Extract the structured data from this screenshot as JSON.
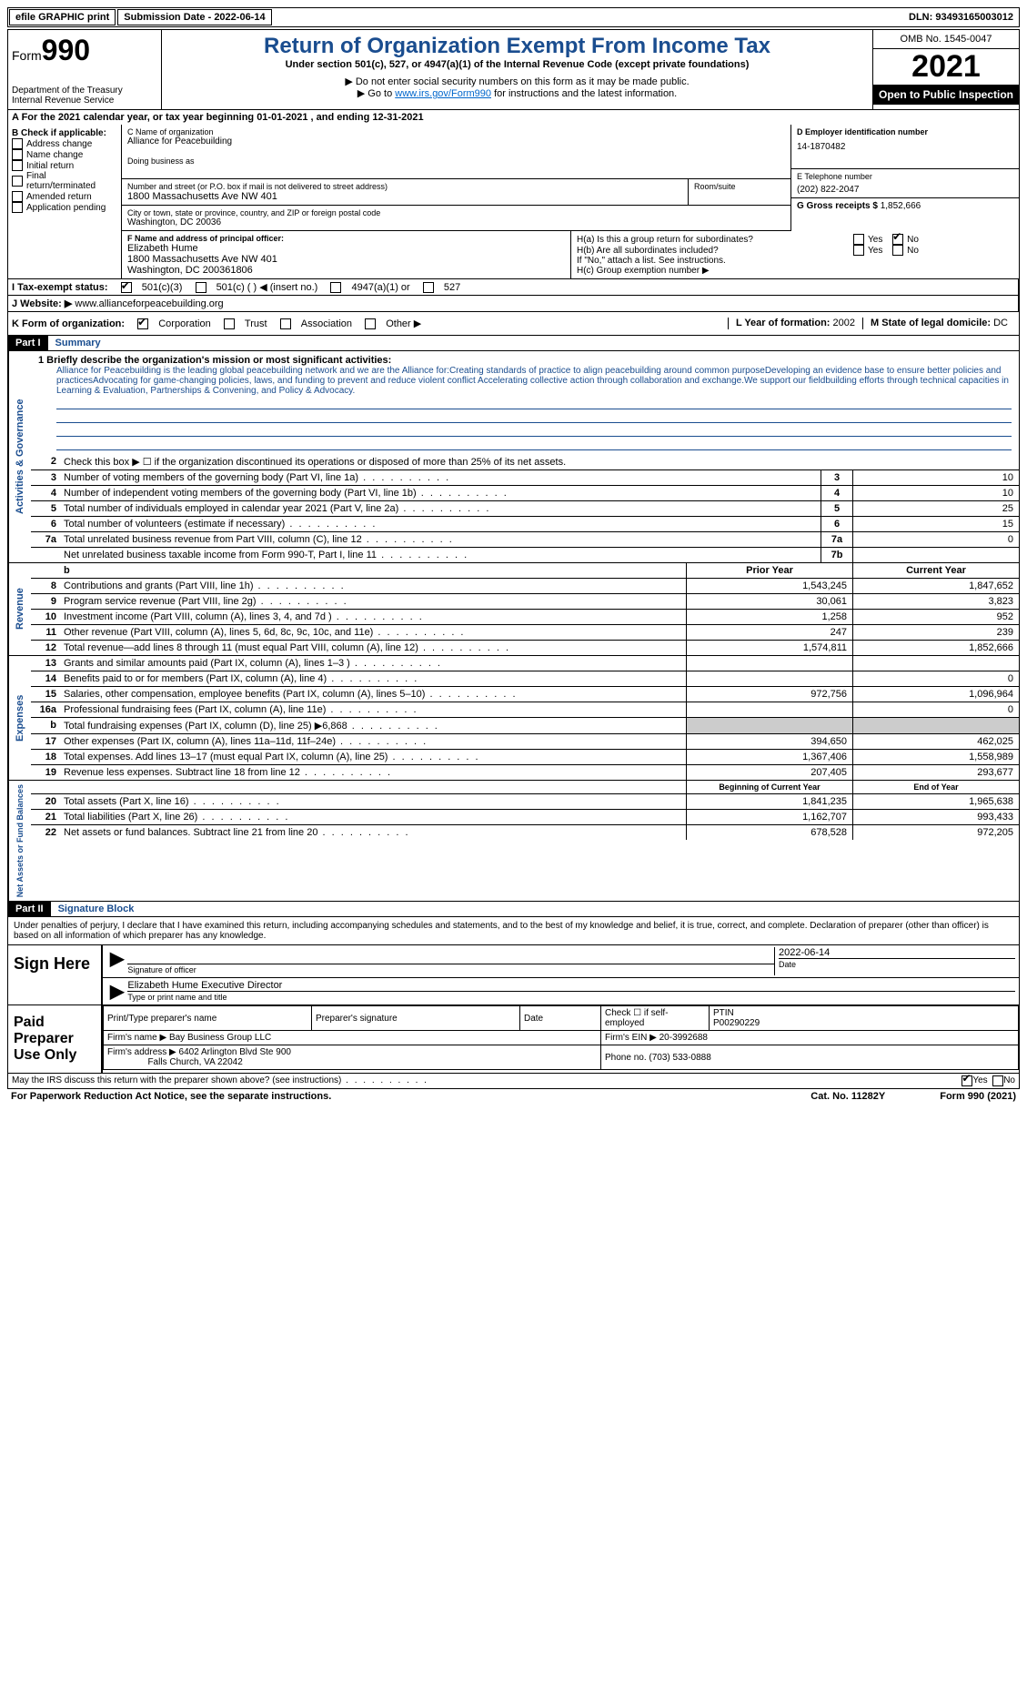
{
  "topbar": {
    "efile": "efile GRAPHIC print",
    "submission_label": "Submission Date - 2022-06-14",
    "dln": "DLN: 93493165003012"
  },
  "header": {
    "form_word": "Form",
    "form_num": "990",
    "dept": "Department of the Treasury",
    "irs": "Internal Revenue Service",
    "title": "Return of Organization Exempt From Income Tax",
    "sub1": "Under section 501(c), 527, or 4947(a)(1) of the Internal Revenue Code (except private foundations)",
    "sub2": "▶ Do not enter social security numbers on this form as it may be made public.",
    "sub3_pre": "▶ Go to ",
    "sub3_link": "www.irs.gov/Form990",
    "sub3_post": " for instructions and the latest information.",
    "omb": "OMB No. 1545-0047",
    "year": "2021",
    "open": "Open to Public Inspection"
  },
  "row_a": "A For the 2021 calendar year, or tax year beginning 01-01-2021    , and ending 12-31-2021",
  "col_b": {
    "hdr": "B Check if applicable:",
    "items": [
      "Address change",
      "Name change",
      "Initial return",
      "Final return/terminated",
      "Amended return",
      "Application pending"
    ]
  },
  "col_c": {
    "name_lbl": "C Name of organization",
    "name": "Alliance for Peacebuilding",
    "dba_lbl": "Doing business as",
    "addr_lbl": "Number and street (or P.O. box if mail is not delivered to street address)",
    "addr": "1800 Massachusetts Ave NW 401",
    "room_lbl": "Room/suite",
    "city_lbl": "City or town, state or province, country, and ZIP or foreign postal code",
    "city": "Washington, DC  20036",
    "f_lbl": "F  Name and address of principal officer:",
    "f_name": "Elizabeth Hume",
    "f_addr1": "1800 Massachusetts Ave NW 401",
    "f_addr2": "Washington, DC  200361806"
  },
  "col_d": {
    "d_lbl": "D Employer identification number",
    "d_val": "14-1870482",
    "e_lbl": "E Telephone number",
    "e_val": "(202) 822-2047",
    "g_lbl": "G Gross receipts $",
    "g_val": "1,852,666",
    "ha_lbl": "H(a)  Is this a group return for subordinates?",
    "hb_lbl": "H(b)  Are all subordinates included?",
    "hb_note": "If \"No,\" attach a list. See instructions.",
    "hc_lbl": "H(c)  Group exemption number ▶",
    "yes": "Yes",
    "no": "No"
  },
  "row_i": {
    "lbl": "I  Tax-exempt status:",
    "o1": "501(c)(3)",
    "o2": "501(c) (  ) ◀ (insert no.)",
    "o3": "4947(a)(1) or",
    "o4": "527"
  },
  "row_j": {
    "lbl": "J  Website: ▶",
    "val": "www.allianceforpeacebuilding.org"
  },
  "row_k": {
    "lbl": "K Form of organization:",
    "o1": "Corporation",
    "o2": "Trust",
    "o3": "Association",
    "o4": "Other ▶",
    "l_lbl": "L Year of formation:",
    "l_val": "2002",
    "m_lbl": "M State of legal domicile:",
    "m_val": "DC"
  },
  "part1": {
    "hdr": "Part I",
    "title": "Summary",
    "l1_lbl": "1  Briefly describe the organization's mission or most significant activities:",
    "mission": "Alliance for Peacebuilding is the leading global peacebuilding network and we are the Alliance for:Creating standards of practice to align peacebuilding around common purposeDeveloping an evidence base to ensure better policies and practicesAdvocating for game-changing policies, laws, and funding to prevent and reduce violent conflict Accelerating collective action through collaboration and exchange.We support our fieldbuilding efforts through technical capacities in Learning & Evaluation, Partnerships & Convening, and Policy & Advocacy.",
    "l2": "Check this box ▶ ☐  if the organization discontinued its operations or disposed of more than 25% of its net assets.",
    "vlabels": {
      "ag": "Activities & Governance",
      "rev": "Revenue",
      "exp": "Expenses",
      "nab": "Net Assets or Fund Balances"
    },
    "lines_ag": [
      {
        "n": "3",
        "d": "Number of voting members of the governing body (Part VI, line 1a)",
        "box": "3",
        "v": "10"
      },
      {
        "n": "4",
        "d": "Number of independent voting members of the governing body (Part VI, line 1b)",
        "box": "4",
        "v": "10"
      },
      {
        "n": "5",
        "d": "Total number of individuals employed in calendar year 2021 (Part V, line 2a)",
        "box": "5",
        "v": "25"
      },
      {
        "n": "6",
        "d": "Total number of volunteers (estimate if necessary)",
        "box": "6",
        "v": "15"
      },
      {
        "n": "7a",
        "d": "Total unrelated business revenue from Part VIII, column (C), line 12",
        "box": "7a",
        "v": "0"
      },
      {
        "n": "",
        "d": "Net unrelated business taxable income from Form 990-T, Part I, line 11",
        "box": "7b",
        "v": ""
      }
    ],
    "col_hdrs": {
      "prior": "Prior Year",
      "current": "Current Year",
      "bcy": "Beginning of Current Year",
      "eoy": "End of Year"
    },
    "lines_rev": [
      {
        "n": "8",
        "d": "Contributions and grants (Part VIII, line 1h)",
        "p": "1,543,245",
        "c": "1,847,652"
      },
      {
        "n": "9",
        "d": "Program service revenue (Part VIII, line 2g)",
        "p": "30,061",
        "c": "3,823"
      },
      {
        "n": "10",
        "d": "Investment income (Part VIII, column (A), lines 3, 4, and 7d )",
        "p": "1,258",
        "c": "952"
      },
      {
        "n": "11",
        "d": "Other revenue (Part VIII, column (A), lines 5, 6d, 8c, 9c, 10c, and 11e)",
        "p": "247",
        "c": "239"
      },
      {
        "n": "12",
        "d": "Total revenue—add lines 8 through 11 (must equal Part VIII, column (A), line 12)",
        "p": "1,574,811",
        "c": "1,852,666"
      }
    ],
    "lines_exp": [
      {
        "n": "13",
        "d": "Grants and similar amounts paid (Part IX, column (A), lines 1–3 )",
        "p": "",
        "c": ""
      },
      {
        "n": "14",
        "d": "Benefits paid to or for members (Part IX, column (A), line 4)",
        "p": "",
        "c": "0"
      },
      {
        "n": "15",
        "d": "Salaries, other compensation, employee benefits (Part IX, column (A), lines 5–10)",
        "p": "972,756",
        "c": "1,096,964"
      },
      {
        "n": "16a",
        "d": "Professional fundraising fees (Part IX, column (A), line 11e)",
        "p": "",
        "c": "0"
      },
      {
        "n": "b",
        "d": "Total fundraising expenses (Part IX, column (D), line 25) ▶6,868",
        "p": "shaded",
        "c": "shaded"
      },
      {
        "n": "17",
        "d": "Other expenses (Part IX, column (A), lines 11a–11d, 11f–24e)",
        "p": "394,650",
        "c": "462,025"
      },
      {
        "n": "18",
        "d": "Total expenses. Add lines 13–17 (must equal Part IX, column (A), line 25)",
        "p": "1,367,406",
        "c": "1,558,989"
      },
      {
        "n": "19",
        "d": "Revenue less expenses. Subtract line 18 from line 12",
        "p": "207,405",
        "c": "293,677"
      }
    ],
    "lines_nab": [
      {
        "n": "20",
        "d": "Total assets (Part X, line 16)",
        "p": "1,841,235",
        "c": "1,965,638"
      },
      {
        "n": "21",
        "d": "Total liabilities (Part X, line 26)",
        "p": "1,162,707",
        "c": "993,433"
      },
      {
        "n": "22",
        "d": "Net assets or fund balances. Subtract line 21 from line 20",
        "p": "678,528",
        "c": "972,205"
      }
    ]
  },
  "part2": {
    "hdr": "Part II",
    "title": "Signature Block",
    "decl": "Under penalties of perjury, I declare that I have examined this return, including accompanying schedules and statements, and to the best of my knowledge and belief, it is true, correct, and complete. Declaration of preparer (other than officer) is based on all information of which preparer has any knowledge.",
    "sign_here": "Sign Here",
    "sig_of_officer": "Signature of officer",
    "date_lbl": "Date",
    "date_val": "2022-06-14",
    "name_title": "Elizabeth Hume  Executive Director",
    "type_name": "Type or print name and title",
    "paid": "Paid Preparer Use Only",
    "p_name_lbl": "Print/Type preparer's name",
    "p_sig_lbl": "Preparer's signature",
    "p_date_lbl": "Date",
    "p_check_lbl": "Check ☐ if self-employed",
    "ptin_lbl": "PTIN",
    "ptin": "P00290229",
    "firm_name_lbl": "Firm's name    ▶",
    "firm_name": "Bay Business Group LLC",
    "firm_ein_lbl": "Firm's EIN ▶",
    "firm_ein": "20-3992688",
    "firm_addr_lbl": "Firm's address ▶",
    "firm_addr1": "6402 Arlington Blvd Ste 900",
    "firm_addr2": "Falls Church, VA  22042",
    "phone_lbl": "Phone no.",
    "phone": "(703) 533-0888",
    "discuss": "May the IRS discuss this return with the preparer shown above? (see instructions)",
    "paperwork": "For Paperwork Reduction Act Notice, see the separate instructions.",
    "cat": "Cat. No. 11282Y",
    "formfoot": "Form 990 (2021)"
  }
}
